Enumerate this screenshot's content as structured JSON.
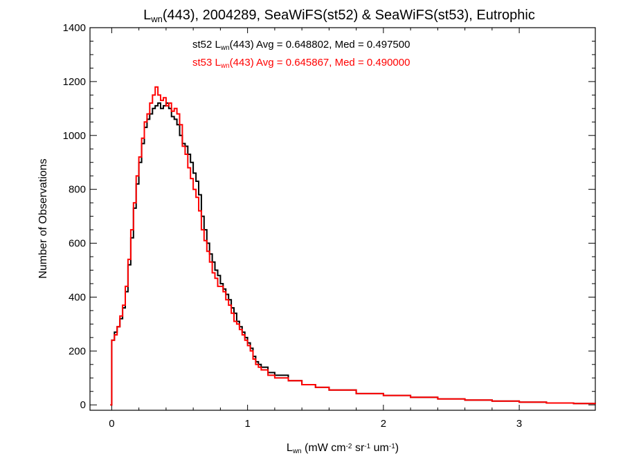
{
  "chart_data": {
    "type": "line",
    "step": true,
    "title": {
      "parts": [
        {
          "text": "L",
          "sub": false
        },
        {
          "text": "wn",
          "sub": true
        },
        {
          "text": "(443), 2004289, SeaWiFS(st52) & SeaWiFS(st53), Eutrophic",
          "sub": false
        }
      ]
    },
    "xlabel": {
      "parts": [
        {
          "text": "L",
          "sup": false,
          "sub": false
        },
        {
          "text": "wn",
          "sub": true
        },
        {
          "text": " (mW cm",
          "sub": false
        },
        {
          "text": "-2",
          "sup": true
        },
        {
          "text": " sr",
          "sub": false
        },
        {
          "text": "-1",
          "sup": true
        },
        {
          "text": " um",
          "sub": false
        },
        {
          "text": "-1",
          "sup": true
        },
        {
          "text": ")",
          "sub": false
        }
      ]
    },
    "ylabel": "Number of Observations",
    "xlim": [
      -0.16,
      3.56
    ],
    "ylim": [
      -20,
      1400
    ],
    "xticks": [
      0,
      1,
      2,
      3
    ],
    "xtick_labels": [
      "0",
      "1",
      "2",
      "3"
    ],
    "yticks": [
      0,
      200,
      400,
      600,
      800,
      1000,
      1200,
      1400
    ],
    "ytick_labels": [
      "0",
      "200",
      "400",
      "600",
      "800",
      "1000",
      "1200",
      "1400"
    ],
    "grid": false,
    "annotations": [
      {
        "color": "#000000",
        "parts": [
          {
            "text": "st52 L",
            "sub": false
          },
          {
            "text": "wn",
            "sub": true
          },
          {
            "text": "(443) Avg = 0.648802, Med = 0.497500",
            "sub": false
          }
        ]
      },
      {
        "color": "#ff0000",
        "parts": [
          {
            "text": "st53 L",
            "sub": false
          },
          {
            "text": "wn",
            "sub": true
          },
          {
            "text": "(443) Avg = 0.645867, Med = 0.490000",
            "sub": false
          }
        ]
      }
    ],
    "series": [
      {
        "name": "st52",
        "color": "#000000",
        "points": [
          [
            -0.01,
            0
          ],
          [
            0.0,
            240
          ],
          [
            0.02,
            270
          ],
          [
            0.04,
            290
          ],
          [
            0.06,
            320
          ],
          [
            0.08,
            360
          ],
          [
            0.1,
            420
          ],
          [
            0.12,
            520
          ],
          [
            0.14,
            620
          ],
          [
            0.16,
            730
          ],
          [
            0.18,
            820
          ],
          [
            0.2,
            900
          ],
          [
            0.22,
            970
          ],
          [
            0.24,
            1030
          ],
          [
            0.26,
            1060
          ],
          [
            0.28,
            1080
          ],
          [
            0.3,
            1100
          ],
          [
            0.32,
            1110
          ],
          [
            0.34,
            1120
          ],
          [
            0.36,
            1100
          ],
          [
            0.38,
            1110
          ],
          [
            0.4,
            1120
          ],
          [
            0.42,
            1100
          ],
          [
            0.44,
            1070
          ],
          [
            0.46,
            1060
          ],
          [
            0.48,
            1040
          ],
          [
            0.5,
            1000
          ],
          [
            0.52,
            970
          ],
          [
            0.54,
            960
          ],
          [
            0.56,
            930
          ],
          [
            0.58,
            900
          ],
          [
            0.6,
            860
          ],
          [
            0.62,
            830
          ],
          [
            0.64,
            780
          ],
          [
            0.66,
            700
          ],
          [
            0.68,
            650
          ],
          [
            0.7,
            600
          ],
          [
            0.72,
            560
          ],
          [
            0.74,
            530
          ],
          [
            0.76,
            500
          ],
          [
            0.78,
            480
          ],
          [
            0.8,
            450
          ],
          [
            0.82,
            430
          ],
          [
            0.84,
            410
          ],
          [
            0.86,
            390
          ],
          [
            0.88,
            360
          ],
          [
            0.9,
            340
          ],
          [
            0.92,
            310
          ],
          [
            0.94,
            290
          ],
          [
            0.96,
            270
          ],
          [
            0.98,
            250
          ],
          [
            1.0,
            230
          ],
          [
            1.02,
            210
          ],
          [
            1.04,
            180
          ],
          [
            1.06,
            160
          ],
          [
            1.08,
            150
          ],
          [
            1.1,
            140
          ],
          [
            1.15,
            120
          ],
          [
            1.2,
            110
          ],
          [
            1.3,
            90
          ],
          [
            1.4,
            75
          ],
          [
            1.5,
            65
          ],
          [
            1.6,
            55
          ],
          [
            1.8,
            42
          ],
          [
            2.0,
            35
          ],
          [
            2.2,
            28
          ],
          [
            2.4,
            22
          ],
          [
            2.6,
            18
          ],
          [
            2.8,
            14
          ],
          [
            3.0,
            10
          ],
          [
            3.2,
            7
          ],
          [
            3.4,
            5
          ],
          [
            3.56,
            4
          ]
        ]
      },
      {
        "name": "st53",
        "color": "#ff0000",
        "points": [
          [
            -0.01,
            0
          ],
          [
            0.0,
            240
          ],
          [
            0.02,
            260
          ],
          [
            0.04,
            290
          ],
          [
            0.06,
            330
          ],
          [
            0.08,
            370
          ],
          [
            0.1,
            440
          ],
          [
            0.12,
            540
          ],
          [
            0.14,
            650
          ],
          [
            0.16,
            750
          ],
          [
            0.18,
            850
          ],
          [
            0.2,
            920
          ],
          [
            0.22,
            990
          ],
          [
            0.24,
            1050
          ],
          [
            0.26,
            1080
          ],
          [
            0.28,
            1120
          ],
          [
            0.3,
            1150
          ],
          [
            0.32,
            1180
          ],
          [
            0.34,
            1150
          ],
          [
            0.36,
            1130
          ],
          [
            0.38,
            1140
          ],
          [
            0.4,
            1110
          ],
          [
            0.42,
            1120
          ],
          [
            0.44,
            1090
          ],
          [
            0.46,
            1100
          ],
          [
            0.48,
            1080
          ],
          [
            0.5,
            1040
          ],
          [
            0.52,
            960
          ],
          [
            0.54,
            930
          ],
          [
            0.56,
            880
          ],
          [
            0.58,
            840
          ],
          [
            0.6,
            800
          ],
          [
            0.62,
            770
          ],
          [
            0.64,
            720
          ],
          [
            0.66,
            650
          ],
          [
            0.68,
            610
          ],
          [
            0.7,
            570
          ],
          [
            0.72,
            530
          ],
          [
            0.74,
            490
          ],
          [
            0.76,
            470
          ],
          [
            0.78,
            440
          ],
          [
            0.8,
            440
          ],
          [
            0.82,
            420
          ],
          [
            0.84,
            390
          ],
          [
            0.86,
            370
          ],
          [
            0.88,
            340
          ],
          [
            0.9,
            310
          ],
          [
            0.92,
            300
          ],
          [
            0.94,
            280
          ],
          [
            0.96,
            260
          ],
          [
            0.98,
            240
          ],
          [
            1.0,
            220
          ],
          [
            1.02,
            200
          ],
          [
            1.04,
            170
          ],
          [
            1.06,
            150
          ],
          [
            1.08,
            140
          ],
          [
            1.1,
            130
          ],
          [
            1.15,
            110
          ],
          [
            1.2,
            100
          ],
          [
            1.3,
            90
          ],
          [
            1.4,
            75
          ],
          [
            1.5,
            65
          ],
          [
            1.6,
            55
          ],
          [
            1.8,
            42
          ],
          [
            2.0,
            35
          ],
          [
            2.2,
            28
          ],
          [
            2.4,
            22
          ],
          [
            2.6,
            18
          ],
          [
            2.8,
            14
          ],
          [
            3.0,
            10
          ],
          [
            3.2,
            7
          ],
          [
            3.4,
            5
          ],
          [
            3.56,
            4
          ]
        ]
      }
    ]
  }
}
